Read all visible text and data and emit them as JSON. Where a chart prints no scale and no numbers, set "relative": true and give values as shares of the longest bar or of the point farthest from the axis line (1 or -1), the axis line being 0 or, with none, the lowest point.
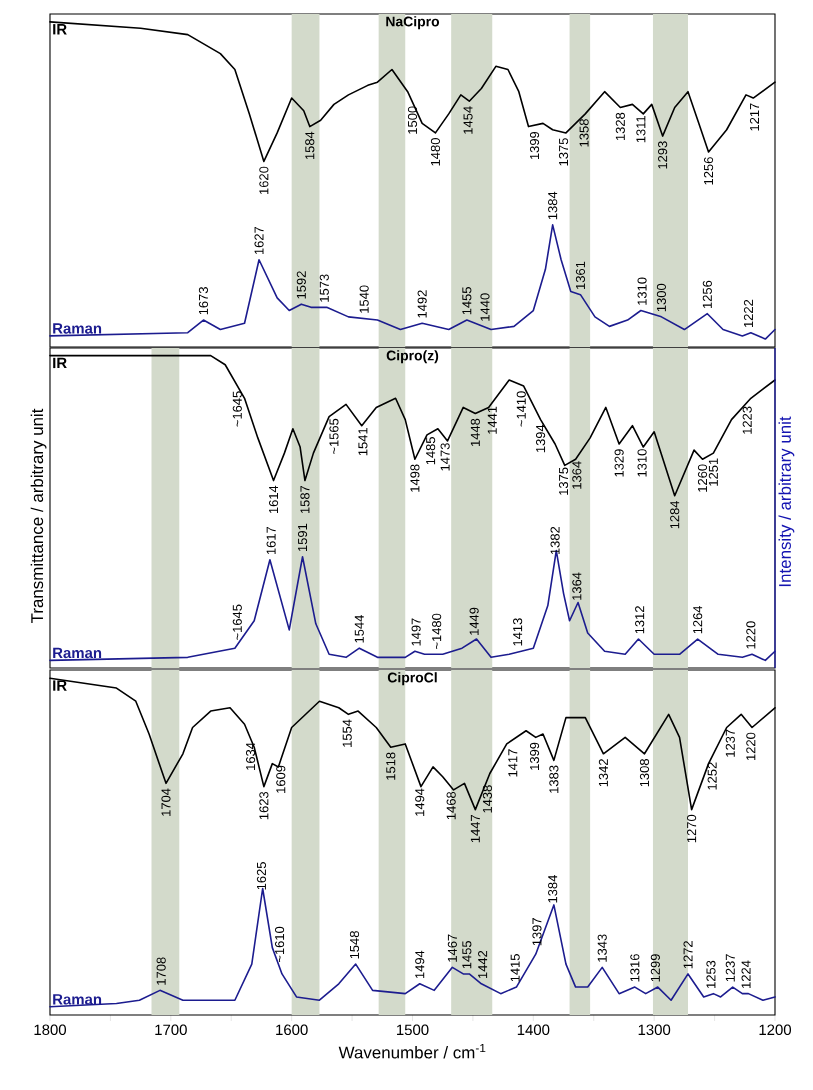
{
  "chart_data": [
    {
      "type": "line",
      "title": "NaCipro",
      "relative": true,
      "xlim": [
        1800,
        1200
      ],
      "tick_labels": false,
      "series": [
        {
          "name": "IR",
          "color": "#000000",
          "x": [
            1800,
            1725,
            1686,
            1659,
            1647,
            1635,
            1623,
            1612,
            1600,
            1590,
            1585,
            1576,
            1565,
            1553,
            1537,
            1529,
            1517,
            1504,
            1492,
            1481,
            1470,
            1460,
            1453,
            1443,
            1431,
            1421,
            1412,
            1404,
            1392,
            1384,
            1373,
            1357,
            1341,
            1328,
            1318,
            1309,
            1302,
            1293,
            1283,
            1272,
            1263,
            1255,
            1240,
            1224,
            1218,
            1200
          ],
          "values": [
            1.0,
            0.98,
            0.96,
            0.9,
            0.85,
            0.71,
            0.56,
            0.65,
            0.76,
            0.72,
            0.67,
            0.69,
            0.74,
            0.77,
            0.8,
            0.81,
            0.85,
            0.78,
            0.68,
            0.65,
            0.71,
            0.77,
            0.75,
            0.79,
            0.86,
            0.85,
            0.78,
            0.67,
            0.68,
            0.66,
            0.65,
            0.71,
            0.78,
            0.73,
            0.74,
            0.71,
            0.74,
            0.64,
            0.73,
            0.78,
            0.68,
            0.59,
            0.66,
            0.77,
            0.76,
            0.81
          ]
        },
        {
          "name": "Raman",
          "color": "#1c1c8f",
          "x": [
            1800,
            1686,
            1673,
            1659,
            1639,
            1627,
            1612,
            1602,
            1592,
            1584,
            1571,
            1553,
            1529,
            1510,
            1492,
            1470,
            1455,
            1435,
            1416,
            1400,
            1390,
            1384,
            1377,
            1369,
            1361,
            1349,
            1337,
            1322,
            1311,
            1294,
            1275,
            1256,
            1243,
            1227,
            1220,
            1208,
            1200
          ],
          "values": [
            0.01,
            0.02,
            0.06,
            0.03,
            0.05,
            0.25,
            0.13,
            0.09,
            0.11,
            0.1,
            0.1,
            0.07,
            0.06,
            0.03,
            0.05,
            0.03,
            0.06,
            0.03,
            0.04,
            0.09,
            0.22,
            0.36,
            0.25,
            0.15,
            0.14,
            0.07,
            0.04,
            0.06,
            0.09,
            0.07,
            0.03,
            0.08,
            0.03,
            0.01,
            0.02,
            0.0,
            0.03
          ]
        }
      ],
      "bands": [
        {
          "axis": "x",
          "from": 1600,
          "to": 1577,
          "color": "#d3dacb"
        },
        {
          "axis": "x",
          "from": 1528,
          "to": 1506,
          "color": "#d3dacb"
        },
        {
          "axis": "x",
          "from": 1468,
          "to": 1434,
          "color": "#d3dacb"
        },
        {
          "axis": "x",
          "from": 1370,
          "to": 1353,
          "color": "#d3dacb"
        },
        {
          "axis": "x",
          "from": 1301,
          "to": 1272,
          "color": "#d3dacb"
        }
      ],
      "annotations": [
        {
          "text": "1620",
          "x": 1623,
          "y": 0.56
        },
        {
          "text": "1584",
          "x": 1585,
          "y": 0.67
        },
        {
          "text": "1500",
          "x": 1500,
          "y": 0.75
        },
        {
          "text": "1480",
          "x": 1481,
          "y": 0.65
        },
        {
          "text": "1454",
          "x": 1454,
          "y": 0.75
        },
        {
          "text": "1399",
          "x": 1399,
          "y": 0.67
        },
        {
          "text": "1375",
          "x": 1375,
          "y": 0.65
        },
        {
          "text": "1358",
          "x": 1358,
          "y": 0.71
        },
        {
          "text": "1328",
          "x": 1328,
          "y": 0.73
        },
        {
          "text": "1311",
          "x": 1311,
          "y": 0.72
        },
        {
          "text": "1293",
          "x": 1293,
          "y": 0.64
        },
        {
          "text": "1256",
          "x": 1255,
          "y": 0.59
        },
        {
          "text": "1217",
          "x": 1217,
          "y": 0.76
        },
        {
          "text": "1673",
          "x": 1673,
          "y": 0.06
        },
        {
          "text": "1627",
          "x": 1627,
          "y": 0.25
        },
        {
          "text": "1592",
          "x": 1592,
          "y": 0.11
        },
        {
          "text": "1573",
          "x": 1573,
          "y": 0.1
        },
        {
          "text": "1540",
          "x": 1540,
          "y": 0.065
        },
        {
          "text": "1492",
          "x": 1492,
          "y": 0.05
        },
        {
          "text": "1455",
          "x": 1455,
          "y": 0.06
        },
        {
          "text": "1440",
          "x": 1440,
          "y": 0.04
        },
        {
          "text": "1384",
          "x": 1384,
          "y": 0.36
        },
        {
          "text": "1361",
          "x": 1361,
          "y": 0.14
        },
        {
          "text": "1310",
          "x": 1310,
          "y": 0.09
        },
        {
          "text": "1300",
          "x": 1294,
          "y": 0.07
        },
        {
          "text": "1256",
          "x": 1256,
          "y": 0.08
        },
        {
          "text": "1222",
          "x": 1222,
          "y": 0.02
        }
      ]
    },
    {
      "type": "line",
      "title": "Cipro(z)",
      "relative": true,
      "xlim": [
        1800,
        1200
      ],
      "tick_labels": false,
      "ylabel": "Transmittance / arbitrary unit",
      "y2label": "Intensity / arbitrary unit",
      "series": [
        {
          "name": "IR",
          "color": "#000000",
          "x": [
            1800,
            1667,
            1655,
            1639,
            1628,
            1615,
            1606,
            1599,
            1593,
            1589,
            1582,
            1569,
            1555,
            1542,
            1530,
            1514,
            1506,
            1498,
            1488,
            1479,
            1471,
            1458,
            1448,
            1437,
            1420,
            1408,
            1394,
            1382,
            1374,
            1365,
            1353,
            1340,
            1329,
            1318,
            1309,
            1300,
            1283,
            1267,
            1260,
            1251,
            1236,
            1220,
            1200
          ],
          "values": [
            1.0,
            1.0,
            0.97,
            0.86,
            0.73,
            0.59,
            0.68,
            0.76,
            0.7,
            0.59,
            0.68,
            0.8,
            0.84,
            0.77,
            0.83,
            0.86,
            0.79,
            0.66,
            0.74,
            0.76,
            0.72,
            0.83,
            0.81,
            0.83,
            0.92,
            0.9,
            0.79,
            0.71,
            0.64,
            0.66,
            0.73,
            0.83,
            0.71,
            0.77,
            0.7,
            0.75,
            0.54,
            0.69,
            0.66,
            0.68,
            0.79,
            0.86,
            0.92
          ]
        },
        {
          "name": "Raman",
          "color": "#1c1c8f",
          "x": [
            1800,
            1686,
            1647,
            1631,
            1618,
            1602,
            1591,
            1580,
            1569,
            1555,
            1544,
            1529,
            1506,
            1498,
            1490,
            1475,
            1459,
            1447,
            1435,
            1420,
            1400,
            1388,
            1381,
            1375,
            1370,
            1363,
            1355,
            1341,
            1324,
            1313,
            1300,
            1279,
            1264,
            1247,
            1227,
            1219,
            1208,
            1200
          ],
          "values": [
            0.0,
            0.01,
            0.04,
            0.13,
            0.33,
            0.1,
            0.34,
            0.12,
            0.02,
            0.01,
            0.04,
            0.01,
            0.01,
            0.03,
            0.02,
            0.02,
            0.04,
            0.07,
            0.01,
            0.02,
            0.04,
            0.18,
            0.36,
            0.22,
            0.13,
            0.19,
            0.09,
            0.03,
            0.02,
            0.07,
            0.02,
            0.02,
            0.07,
            0.02,
            0.01,
            0.02,
            0.0,
            0.03
          ]
        }
      ],
      "bands": [
        {
          "axis": "x",
          "from": 1716,
          "to": 1693,
          "color": "#d3dacb"
        },
        {
          "axis": "x",
          "from": 1600,
          "to": 1577,
          "color": "#d3dacb"
        },
        {
          "axis": "x",
          "from": 1528,
          "to": 1506,
          "color": "#d3dacb"
        },
        {
          "axis": "x",
          "from": 1468,
          "to": 1434,
          "color": "#d3dacb"
        },
        {
          "axis": "x",
          "from": 1370,
          "to": 1353,
          "color": "#d3dacb"
        },
        {
          "axis": "x",
          "from": 1301,
          "to": 1272,
          "color": "#d3dacb"
        }
      ],
      "annotations": [
        {
          "text": "~1645",
          "x": 1645,
          "y": 0.9
        },
        {
          "text": "1614",
          "x": 1615,
          "y": 0.59
        },
        {
          "text": "1587",
          "x": 1589,
          "y": 0.59
        },
        {
          "text": "~1565",
          "x": 1565,
          "y": 0.81
        },
        {
          "text": "1541",
          "x": 1541,
          "y": 0.78
        },
        {
          "text": "1498",
          "x": 1498,
          "y": 0.66
        },
        {
          "text": "1485",
          "x": 1485,
          "y": 0.75
        },
        {
          "text": "1473",
          "x": 1473,
          "y": 0.73
        },
        {
          "text": "1448",
          "x": 1448,
          "y": 0.81
        },
        {
          "text": "1441",
          "x": 1434,
          "y": 0.85
        },
        {
          "text": "~1410",
          "x": 1410,
          "y": 0.9
        },
        {
          "text": "1394",
          "x": 1394,
          "y": 0.79
        },
        {
          "text": "1375",
          "x": 1375,
          "y": 0.65
        },
        {
          "text": "1364",
          "x": 1364,
          "y": 0.67
        },
        {
          "text": "1329",
          "x": 1329,
          "y": 0.71
        },
        {
          "text": "1310",
          "x": 1310,
          "y": 0.71
        },
        {
          "text": "1284",
          "x": 1283,
          "y": 0.54
        },
        {
          "text": "1260",
          "x": 1260,
          "y": 0.66
        },
        {
          "text": "1251",
          "x": 1251,
          "y": 0.68
        },
        {
          "text": "1223",
          "x": 1223,
          "y": 0.85
        },
        {
          "text": "1617",
          "x": 1617,
          "y": 0.33
        },
        {
          "text": "1591",
          "x": 1591,
          "y": 0.34
        },
        {
          "text": "~1645",
          "x": 1645,
          "y": 0.05
        },
        {
          "text": "1544",
          "x": 1544,
          "y": 0.04
        },
        {
          "text": "1497",
          "x": 1497,
          "y": 0.03
        },
        {
          "text": "~1480",
          "x": 1480,
          "y": 0.02
        },
        {
          "text": "1449",
          "x": 1449,
          "y": 0.065
        },
        {
          "text": "1413",
          "x": 1413,
          "y": 0.03
        },
        {
          "text": "1382",
          "x": 1382,
          "y": 0.33
        },
        {
          "text": "1364",
          "x": 1364,
          "y": 0.18
        },
        {
          "text": "1312",
          "x": 1312,
          "y": 0.07
        },
        {
          "text": "1264",
          "x": 1264,
          "y": 0.07
        },
        {
          "text": "1220",
          "x": 1220,
          "y": 0.02
        }
      ]
    },
    {
      "type": "line",
      "title": "CiproCl",
      "relative": true,
      "xlim": [
        1800,
        1200
      ],
      "tick_labels": "x",
      "xlabel": "Wavenumber / cm$^{-1}$",
      "xticks": [
        1800,
        {
          "value": 1750,
          "label": null
        },
        1700,
        {
          "value": 1650,
          "label": null
        },
        1600,
        {
          "value": 1550,
          "label": null
        },
        1500,
        {
          "value": 1450,
          "label": null
        },
        1400,
        {
          "value": 1350,
          "label": null
        },
        1300,
        {
          "value": 1250,
          "label": null
        },
        1200
      ],
      "series": [
        {
          "name": "IR",
          "color": "#000000",
          "x": [
            1800,
            1745,
            1729,
            1718,
            1704,
            1690,
            1682,
            1667,
            1651,
            1639,
            1631,
            1623,
            1616,
            1611,
            1600,
            1577,
            1561,
            1553,
            1545,
            1530,
            1518,
            1506,
            1493,
            1483,
            1475,
            1466,
            1457,
            1448,
            1436,
            1422,
            1406,
            1398,
            1392,
            1383,
            1373,
            1357,
            1342,
            1324,
            1308,
            1288,
            1279,
            1269,
            1255,
            1240,
            1228,
            1219,
            1200
          ],
          "values": [
            1.0,
            0.97,
            0.93,
            0.83,
            0.68,
            0.77,
            0.85,
            0.9,
            0.91,
            0.86,
            0.79,
            0.67,
            0.74,
            0.73,
            0.85,
            0.93,
            0.91,
            0.89,
            0.9,
            0.85,
            0.79,
            0.8,
            0.67,
            0.73,
            0.7,
            0.66,
            0.68,
            0.6,
            0.71,
            0.8,
            0.84,
            0.82,
            0.83,
            0.75,
            0.88,
            0.88,
            0.77,
            0.82,
            0.77,
            0.89,
            0.82,
            0.6,
            0.74,
            0.85,
            0.89,
            0.85,
            0.91
          ]
        },
        {
          "name": "Raman",
          "color": "#1c1c8f",
          "x": [
            1800,
            1745,
            1726,
            1709,
            1690,
            1647,
            1633,
            1624,
            1616,
            1608,
            1596,
            1577,
            1561,
            1547,
            1533,
            1506,
            1494,
            1482,
            1467,
            1458,
            1453,
            1443,
            1427,
            1414,
            1398,
            1383,
            1373,
            1365,
            1355,
            1343,
            1329,
            1316,
            1307,
            1297,
            1286,
            1272,
            1259,
            1251,
            1245,
            1235,
            1227,
            1222,
            1210,
            1200
          ],
          "values": [
            0.0,
            0.01,
            0.02,
            0.05,
            0.02,
            0.02,
            0.13,
            0.36,
            0.18,
            0.1,
            0.03,
            0.02,
            0.07,
            0.13,
            0.05,
            0.04,
            0.07,
            0.05,
            0.12,
            0.1,
            0.1,
            0.07,
            0.04,
            0.06,
            0.16,
            0.31,
            0.13,
            0.06,
            0.06,
            0.12,
            0.04,
            0.06,
            0.04,
            0.06,
            0.02,
            0.1,
            0.03,
            0.04,
            0.03,
            0.06,
            0.04,
            0.04,
            0.02,
            0.03
          ]
        }
      ],
      "bands": [
        {
          "axis": "x",
          "from": 1716,
          "to": 1693,
          "color": "#d3dacb"
        },
        {
          "axis": "x",
          "from": 1600,
          "to": 1577,
          "color": "#d3dacb"
        },
        {
          "axis": "x",
          "from": 1528,
          "to": 1506,
          "color": "#d3dacb"
        },
        {
          "axis": "x",
          "from": 1468,
          "to": 1434,
          "color": "#d3dacb"
        },
        {
          "axis": "x",
          "from": 1370,
          "to": 1353,
          "color": "#d3dacb"
        },
        {
          "axis": "x",
          "from": 1301,
          "to": 1272,
          "color": "#d3dacb"
        }
      ],
      "annotations": [
        {
          "text": "1704",
          "x": 1704,
          "y": 0.68
        },
        {
          "text": "1634",
          "x": 1634,
          "y": 0.82
        },
        {
          "text": "1623",
          "x": 1623,
          "y": 0.67
        },
        {
          "text": "1609",
          "x": 1609,
          "y": 0.75
        },
        {
          "text": "1554",
          "x": 1554,
          "y": 0.89
        },
        {
          "text": "1518",
          "x": 1518,
          "y": 0.79
        },
        {
          "text": "1494",
          "x": 1494,
          "y": 0.68
        },
        {
          "text": "1468",
          "x": 1468,
          "y": 0.67
        },
        {
          "text": "1447",
          "x": 1448,
          "y": 0.6
        },
        {
          "text": "1438",
          "x": 1438,
          "y": 0.69
        },
        {
          "text": "1417",
          "x": 1417,
          "y": 0.8
        },
        {
          "text": "1399",
          "x": 1399,
          "y": 0.82
        },
        {
          "text": "1383",
          "x": 1383,
          "y": 0.75
        },
        {
          "text": "1342",
          "x": 1342,
          "y": 0.77
        },
        {
          "text": "1308",
          "x": 1308,
          "y": 0.77
        },
        {
          "text": "1270",
          "x": 1269,
          "y": 0.6
        },
        {
          "text": "1252",
          "x": 1252,
          "y": 0.76
        },
        {
          "text": "1237",
          "x": 1237,
          "y": 0.86
        },
        {
          "text": "1220",
          "x": 1220,
          "y": 0.85
        },
        {
          "text": "1708",
          "x": 1708,
          "y": 0.05
        },
        {
          "text": "1625",
          "x": 1625,
          "y": 0.34
        },
        {
          "text": "~1610",
          "x": 1610,
          "y": 0.12
        },
        {
          "text": "1548",
          "x": 1548,
          "y": 0.13
        },
        {
          "text": "1494",
          "x": 1494,
          "y": 0.07
        },
        {
          "text": "1467",
          "x": 1467,
          "y": 0.12
        },
        {
          "text": "1455",
          "x": 1455,
          "y": 0.1
        },
        {
          "text": "1442",
          "x": 1442,
          "y": 0.07
        },
        {
          "text": "1415",
          "x": 1415,
          "y": 0.06
        },
        {
          "text": "1397",
          "x": 1397,
          "y": 0.17
        },
        {
          "text": "1384",
          "x": 1384,
          "y": 0.3
        },
        {
          "text": "1343",
          "x": 1343,
          "y": 0.12
        },
        {
          "text": "1316",
          "x": 1316,
          "y": 0.06
        },
        {
          "text": "1299",
          "x": 1299,
          "y": 0.06
        },
        {
          "text": "1272",
          "x": 1272,
          "y": 0.1
        },
        {
          "text": "1253",
          "x": 1253,
          "y": 0.04
        },
        {
          "text": "1237",
          "x": 1237,
          "y": 0.06
        },
        {
          "text": "1224",
          "x": 1224,
          "y": 0.04
        }
      ]
    }
  ]
}
